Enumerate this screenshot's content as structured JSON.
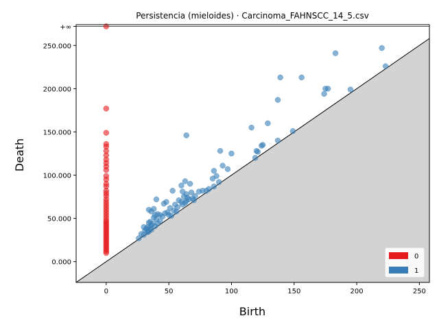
{
  "chart_data": {
    "type": "scatter",
    "title": "Persistencia (mieloides) · Carcinoma_FAHNSCC_14_5.csv",
    "xlabel": "Birth",
    "ylabel": "Death",
    "xlim": [
      -24,
      258
    ],
    "ylim": [
      -24000,
      274000
    ],
    "x_ticks": [
      0,
      50,
      100,
      150,
      200,
      250
    ],
    "x_tick_labels": [
      "0",
      "50",
      "100",
      "150",
      "200",
      "250"
    ],
    "y_ticks": [
      0,
      50000,
      100000,
      150000,
      200000,
      250000
    ],
    "y_tick_labels": [
      "0.000",
      "50.000",
      "100.000",
      "150.000",
      "200.000",
      "250.000"
    ],
    "infinity_label": "+∞",
    "infinity_value": 272000,
    "diagonal": true,
    "grid": false,
    "legend_position": "bottom-right",
    "series": [
      {
        "name": "0",
        "color": "#e41a1c",
        "points": [
          [
            0,
            272000
          ],
          [
            0,
            177000
          ],
          [
            0,
            149000
          ],
          [
            0,
            136000
          ],
          [
            0,
            133000
          ],
          [
            0,
            128000
          ],
          [
            0,
            123000
          ],
          [
            0,
            118000
          ],
          [
            0,
            114000
          ],
          [
            0,
            110000
          ],
          [
            0,
            106000
          ],
          [
            0,
            99000
          ],
          [
            0,
            95000
          ],
          [
            0,
            90000
          ],
          [
            0,
            87000
          ],
          [
            0,
            82000
          ],
          [
            0,
            79000
          ],
          [
            0,
            76000
          ],
          [
            0,
            72000
          ],
          [
            0,
            69000
          ],
          [
            0,
            66000
          ],
          [
            0,
            63000
          ],
          [
            0,
            60000
          ],
          [
            0,
            57000
          ],
          [
            0,
            54000
          ],
          [
            0,
            51000
          ],
          [
            0,
            48000
          ],
          [
            0,
            46000
          ],
          [
            0,
            44000
          ],
          [
            0,
            42000
          ],
          [
            0,
            40000
          ],
          [
            0,
            38000
          ],
          [
            0,
            36000
          ],
          [
            0,
            34000
          ],
          [
            0,
            32000
          ],
          [
            0,
            30000
          ],
          [
            0,
            28000
          ],
          [
            0,
            26000
          ],
          [
            0,
            24000
          ],
          [
            0,
            22000
          ],
          [
            0,
            20000
          ],
          [
            0,
            18000
          ],
          [
            0,
            16000
          ],
          [
            0,
            14000
          ],
          [
            0,
            12000
          ],
          [
            0,
            10000
          ]
        ]
      },
      {
        "name": "1",
        "color": "#377eb8",
        "points": [
          [
            220,
            247000
          ],
          [
            183,
            241000
          ],
          [
            223,
            226000
          ],
          [
            139,
            213000
          ],
          [
            156,
            213000
          ],
          [
            175,
            200000
          ],
          [
            177,
            200000
          ],
          [
            195,
            199000
          ],
          [
            174,
            194000
          ],
          [
            137,
            187000
          ],
          [
            129,
            160000
          ],
          [
            116,
            155000
          ],
          [
            149,
            151000
          ],
          [
            64,
            146000
          ],
          [
            137,
            140000
          ],
          [
            125,
            135000
          ],
          [
            124,
            134000
          ],
          [
            91,
            128000
          ],
          [
            120,
            128000
          ],
          [
            121,
            127000
          ],
          [
            100,
            125000
          ],
          [
            119,
            120000
          ],
          [
            93,
            111000
          ],
          [
            97,
            107000
          ],
          [
            86,
            105000
          ],
          [
            88,
            99000
          ],
          [
            85,
            96000
          ],
          [
            63,
            93000
          ],
          [
            67,
            90000
          ],
          [
            90,
            92000
          ],
          [
            60,
            88000
          ],
          [
            86,
            87000
          ],
          [
            82,
            84000
          ],
          [
            77,
            82000
          ],
          [
            80,
            82000
          ],
          [
            74,
            81000
          ],
          [
            61,
            81000
          ],
          [
            53,
            82000
          ],
          [
            68,
            80000
          ],
          [
            64,
            78000
          ],
          [
            71,
            76000
          ],
          [
            62,
            75000
          ],
          [
            65,
            74000
          ],
          [
            69,
            73000
          ],
          [
            66,
            72000
          ],
          [
            40,
            72000
          ],
          [
            70,
            71000
          ],
          [
            58,
            71000
          ],
          [
            64,
            70000
          ],
          [
            60,
            69000
          ],
          [
            48,
            69000
          ],
          [
            46,
            67000
          ],
          [
            63,
            68000
          ],
          [
            55,
            66000
          ],
          [
            61,
            66000
          ],
          [
            57,
            63000
          ],
          [
            51,
            62000
          ],
          [
            38,
            61000
          ],
          [
            34,
            60000
          ],
          [
            54,
            59000
          ],
          [
            56,
            58000
          ],
          [
            36,
            58000
          ],
          [
            49,
            57000
          ],
          [
            47,
            56000
          ],
          [
            41,
            55000
          ],
          [
            39,
            54000
          ],
          [
            43,
            54000
          ],
          [
            50,
            54000
          ],
          [
            52,
            53000
          ],
          [
            45,
            52000
          ],
          [
            38,
            51000
          ],
          [
            40,
            49000
          ],
          [
            43,
            47000
          ],
          [
            35,
            46000
          ],
          [
            34,
            45000
          ],
          [
            37,
            44000
          ],
          [
            41,
            44000
          ],
          [
            36,
            42000
          ],
          [
            39,
            41000
          ],
          [
            30,
            40000
          ],
          [
            33,
            40000
          ],
          [
            35,
            39000
          ],
          [
            32,
            38000
          ],
          [
            36,
            37000
          ],
          [
            31,
            36000
          ],
          [
            34,
            35000
          ],
          [
            33,
            34000
          ],
          [
            28,
            32000
          ],
          [
            30,
            31000
          ],
          [
            26,
            27000
          ]
        ]
      }
    ]
  }
}
